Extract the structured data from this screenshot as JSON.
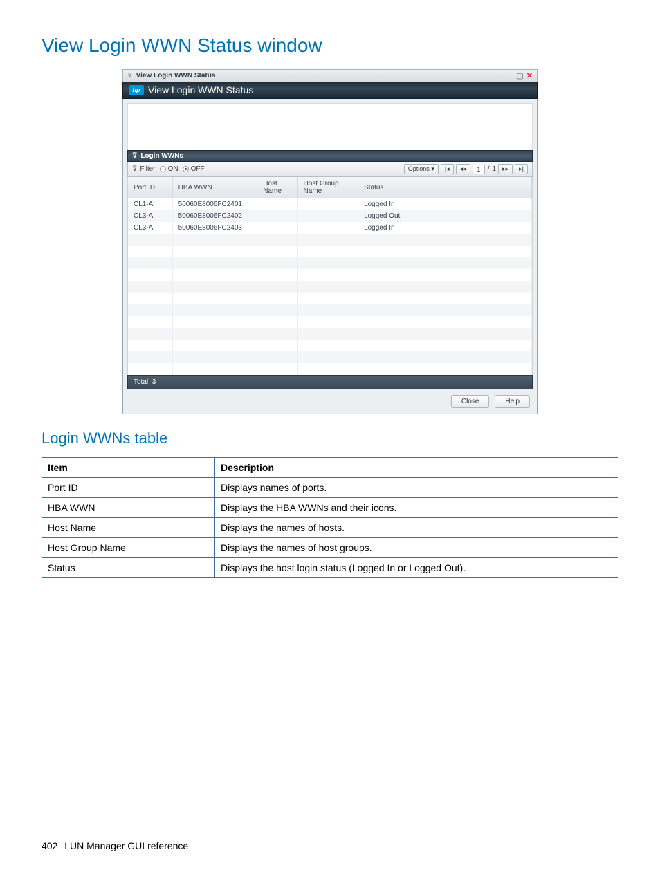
{
  "page": {
    "title": "View Login WWN Status window",
    "sub_title": "Login WWNs table",
    "footer_page_number": "402",
    "footer_text": "LUN Manager GUI reference"
  },
  "window": {
    "titlebar_text": "View Login WWN Status",
    "maximize_glyph": "▢",
    "close_glyph": "✕",
    "collapse_glyph": "⊽",
    "hp_badge": "hp",
    "header_text": "View Login WWN Status",
    "section_glyph": "⊽",
    "section_label": "Login WWNs",
    "filter": {
      "collapse_glyph": "⊽",
      "label": "Filter",
      "on_label": "ON",
      "off_label": "OFF",
      "off_selected": true
    },
    "options_label": "Options",
    "options_caret": "▾",
    "pager": {
      "first_glyph": "|◂",
      "prev_glyph": "◂◂",
      "input_value": "1",
      "total_pages": "1",
      "separator": "/",
      "next_glyph": "▸▸",
      "last_glyph": "▸|"
    },
    "columns": {
      "port_id": "Port ID",
      "hba_wwn": "HBA WWN",
      "host_name": "Host Name",
      "host_group_name": "Host Group Name",
      "status": "Status"
    },
    "rows": [
      {
        "port_id": "CL1-A",
        "hba_wwn": "50060E8006FC2401",
        "host_name": "",
        "host_group_name": "",
        "status": "Logged In"
      },
      {
        "port_id": "CL3-A",
        "hba_wwn": "50060E8006FC2402",
        "host_name": "",
        "host_group_name": "",
        "status": "Logged Out"
      },
      {
        "port_id": "CL3-A",
        "hba_wwn": "50060E8006FC2403",
        "host_name": "",
        "host_group_name": "",
        "status": "Logged In"
      }
    ],
    "total_label": "Total:",
    "total_value": "3",
    "close_btn": "Close",
    "help_btn": "Help"
  },
  "desc_table": {
    "head_item": "Item",
    "head_desc": "Description",
    "rows": [
      {
        "item": "Port ID",
        "desc": "Displays names of ports."
      },
      {
        "item": "HBA WWN",
        "desc": "Displays the HBA WWNs and their icons."
      },
      {
        "item": "Host Name",
        "desc": "Displays the names of hosts."
      },
      {
        "item": "Host Group Name",
        "desc": "Displays the names of host groups."
      },
      {
        "item": "Status",
        "desc": "Displays the host login status (Logged In or Logged Out)."
      }
    ]
  }
}
